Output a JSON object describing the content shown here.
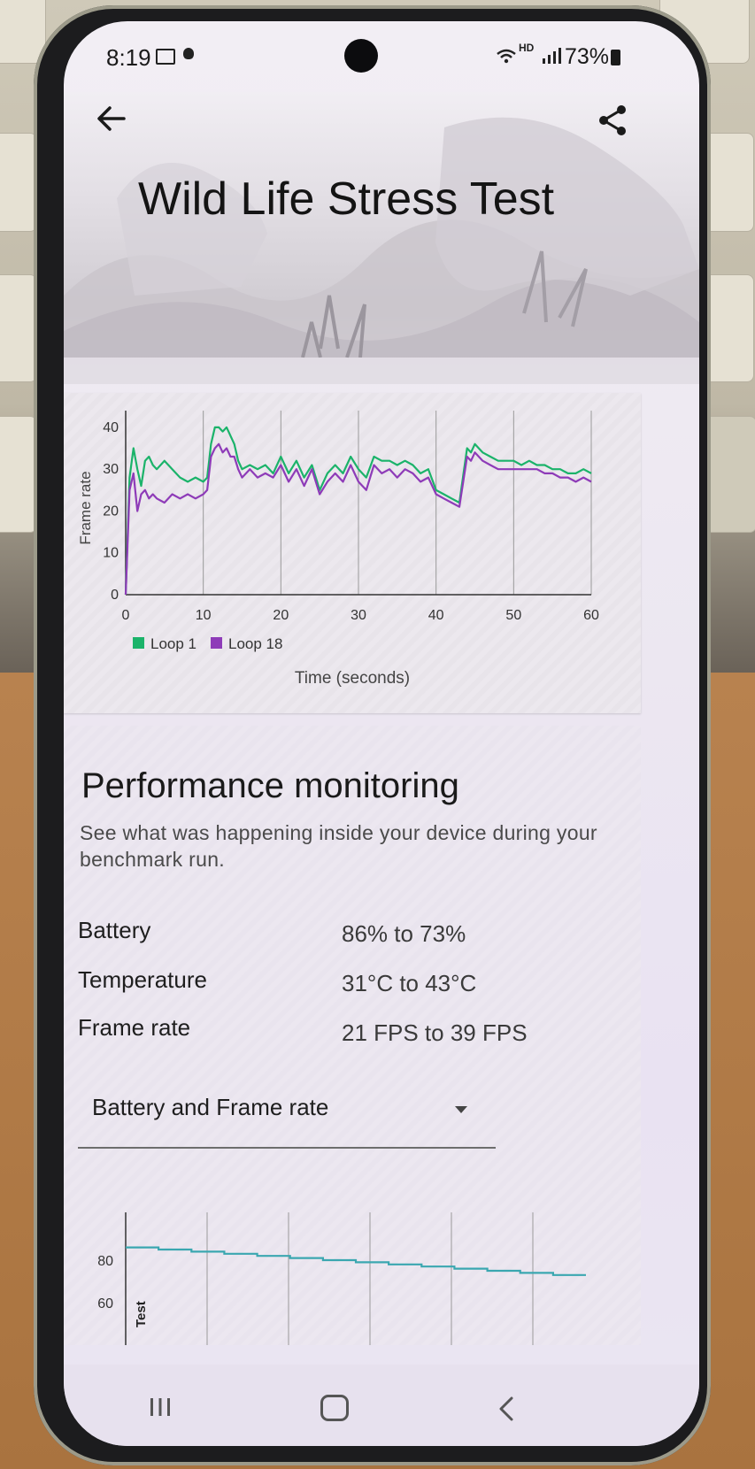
{
  "status_bar": {
    "time": "8:19",
    "hd_label": "HD",
    "battery_percent": "73%"
  },
  "header": {
    "title": "Wild Life Stress Test",
    "back_icon": "arrow-left-icon",
    "share_icon": "share-icon"
  },
  "chart_data": {
    "type": "line",
    "title": "",
    "xlabel": "Time (seconds)",
    "ylabel": "Frame rate",
    "xlim": [
      0,
      60
    ],
    "ylim": [
      0,
      44
    ],
    "x_ticks": [
      "0",
      "10",
      "20",
      "30",
      "40",
      "50",
      "60"
    ],
    "y_ticks": [
      "0",
      "10",
      "20",
      "30",
      "40"
    ],
    "legend_position": "bottom-left",
    "grid": "vertical",
    "series": [
      {
        "name": "Loop 1",
        "color": "#1bb36a",
        "x": [
          0,
          0.5,
          1,
          1.5,
          2,
          2.5,
          3,
          3.5,
          4,
          5,
          6,
          7,
          8,
          9,
          10,
          10.5,
          11,
          11.5,
          12,
          12.5,
          13,
          13.5,
          14,
          14.5,
          15,
          16,
          17,
          18,
          19,
          20,
          21,
          22,
          23,
          24,
          25,
          26,
          27,
          28,
          29,
          30,
          31,
          32,
          33,
          34,
          35,
          36,
          37,
          38,
          39,
          40,
          41,
          42,
          43,
          44,
          44.5,
          45,
          46,
          47,
          48,
          49,
          50,
          51,
          52,
          53,
          54,
          55,
          56,
          57,
          58,
          59,
          60
        ],
        "y": [
          0,
          28,
          35,
          30,
          26,
          32,
          33,
          31,
          30,
          32,
          30,
          28,
          27,
          28,
          27,
          28,
          36,
          40,
          40,
          39,
          40,
          38,
          36,
          32,
          30,
          31,
          30,
          31,
          29,
          33,
          29,
          32,
          28,
          31,
          25,
          29,
          31,
          29,
          33,
          30,
          28,
          33,
          32,
          32,
          31,
          32,
          31,
          29,
          30,
          25,
          24,
          23,
          22,
          35,
          34,
          36,
          34,
          33,
          32,
          32,
          32,
          31,
          32,
          31,
          31,
          30,
          30,
          29,
          29,
          30,
          29
        ]
      },
      {
        "name": "Loop 18",
        "color": "#8e3bb8",
        "x": [
          0,
          0.5,
          1,
          1.5,
          2,
          2.5,
          3,
          3.5,
          4,
          5,
          6,
          7,
          8,
          9,
          10,
          10.5,
          11,
          11.5,
          12,
          12.5,
          13,
          13.5,
          14,
          14.5,
          15,
          16,
          17,
          18,
          19,
          20,
          21,
          22,
          23,
          24,
          25,
          26,
          27,
          28,
          29,
          30,
          31,
          32,
          33,
          34,
          35,
          36,
          37,
          38,
          39,
          40,
          41,
          42,
          43,
          44,
          44.5,
          45,
          46,
          47,
          48,
          49,
          50,
          51,
          52,
          53,
          54,
          55,
          56,
          57,
          58,
          59,
          60
        ],
        "y": [
          0,
          25,
          29,
          20,
          24,
          25,
          23,
          24,
          23,
          22,
          24,
          23,
          24,
          23,
          24,
          25,
          33,
          35,
          36,
          34,
          35,
          33,
          33,
          30,
          28,
          30,
          28,
          29,
          28,
          31,
          27,
          30,
          26,
          30,
          24,
          27,
          29,
          27,
          31,
          27,
          25,
          31,
          29,
          30,
          28,
          30,
          29,
          27,
          28,
          24,
          23,
          22,
          21,
          33,
          32,
          34,
          32,
          31,
          30,
          30,
          30,
          30,
          30,
          30,
          29,
          29,
          28,
          28,
          27,
          28,
          27
        ]
      }
    ]
  },
  "performance": {
    "title": "Performance monitoring",
    "description": "See what was happening inside your device during your benchmark run.",
    "metrics": [
      {
        "label": "Battery",
        "value": "86% to 73%"
      },
      {
        "label": "Temperature",
        "value": "31°C to 43°C"
      },
      {
        "label": "Frame rate",
        "value": "21 FPS to 39 FPS"
      }
    ],
    "dropdown_selected": "Battery and Frame rate",
    "mini_chart": {
      "y_ticks": [
        "80",
        "60"
      ],
      "side_label": "Test",
      "battery_line_color": "#3aa7b0",
      "battery_values": [
        86,
        85,
        84,
        83,
        82,
        81,
        80,
        79,
        78,
        77,
        76,
        75,
        74,
        73
      ]
    }
  },
  "nav_bar": {
    "recents_icon": "recents-icon",
    "home_icon": "home-icon",
    "back_icon": "nav-back-icon"
  }
}
